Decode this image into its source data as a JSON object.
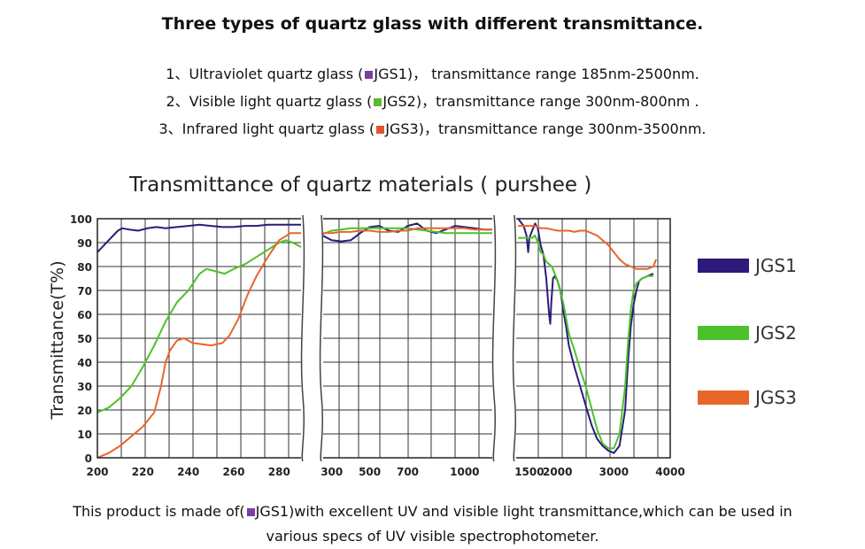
{
  "heading": "Three types of quartz glass with different transmittance.",
  "types": [
    {
      "prefix": "1、Ultraviolet quartz glass (",
      "code": "JGS1",
      "suffix": ")， transmittance range 185nm-2500nm.",
      "color": "#7a3fa0"
    },
    {
      "prefix": "2、Visible light quartz glass (",
      "code": "JGS2",
      "suffix": ")，transmittance range 300nm-800nm .",
      "color": "#5dbb2d"
    },
    {
      "prefix": "3、Infrared light quartz glass (",
      "code": "JGS3",
      "suffix": ")，transmittance range 300nm-3500nm.",
      "color": "#e2542b"
    }
  ],
  "footer": {
    "line1": "This product is made of(",
    "code": "JGS1",
    "line2": ")with excellent UV and visible light transmittance,which can be used in",
    "line3": "various specs of UV visible spectrophotometer."
  },
  "chart_data": {
    "type": "line",
    "title": "Transmittance of quartz materials ( purshee )",
    "xlabel": "",
    "ylabel": "Transmittance(T%)",
    "ylim": [
      0,
      100
    ],
    "yticks": [
      0,
      10,
      20,
      30,
      40,
      50,
      60,
      70,
      80,
      90,
      100
    ],
    "grid": true,
    "legend_position": "right",
    "panels": [
      {
        "xlim": [
          200,
          290
        ],
        "xticks": [
          200,
          220,
          240,
          260,
          280
        ]
      },
      {
        "xlim": [
          250,
          1150
        ],
        "xticks": [
          300,
          500,
          700,
          1000
        ],
        "xtick_positions": [
          300,
          500,
          700,
          1000
        ]
      },
      {
        "xlim": [
          1250,
          4000
        ],
        "xticks": [
          1500,
          2000,
          3000,
          4000
        ],
        "xtick_positions": [
          1500,
          2000,
          3000,
          4000
        ]
      }
    ],
    "series": [
      {
        "name": "JGS1",
        "color": "#2d1a7a",
        "panels": [
          [
            [
              200,
              86
            ],
            [
              203,
              89
            ],
            [
              206,
              92
            ],
            [
              209,
              95
            ],
            [
              211,
              96
            ],
            [
              214,
              95.5
            ],
            [
              218,
              95
            ],
            [
              222,
              96
            ],
            [
              226,
              96.5
            ],
            [
              230,
              96
            ],
            [
              235,
              96.5
            ],
            [
              240,
              97
            ],
            [
              245,
              97.5
            ],
            [
              250,
              97
            ],
            [
              255,
              96.5
            ],
            [
              260,
              96.5
            ],
            [
              265,
              97
            ],
            [
              270,
              97
            ],
            [
              275,
              97.5
            ],
            [
              280,
              97.5
            ],
            [
              285,
              97.5
            ],
            [
              290,
              97.5
            ]
          ],
          [
            [
              250,
              93
            ],
            [
              300,
              91
            ],
            [
              350,
              90.5
            ],
            [
              400,
              91
            ],
            [
              450,
              94
            ],
            [
              500,
              96.5
            ],
            [
              550,
              97
            ],
            [
              600,
              95
            ],
            [
              650,
              94.5
            ],
            [
              700,
              97
            ],
            [
              750,
              98
            ],
            [
              800,
              95
            ],
            [
              850,
              94
            ],
            [
              900,
              95.5
            ],
            [
              950,
              97
            ],
            [
              1000,
              96.5
            ],
            [
              1050,
              96
            ],
            [
              1100,
              95.5
            ],
            [
              1150,
              95.5
            ]
          ],
          [
            [
              1300,
              100
            ],
            [
              1400,
              97
            ],
            [
              1450,
              93
            ],
            [
              1480,
              86
            ],
            [
              1500,
              92
            ],
            [
              1550,
              95
            ],
            [
              1600,
              98
            ],
            [
              1650,
              96
            ],
            [
              1700,
              89
            ],
            [
              1750,
              85
            ],
            [
              1800,
              75
            ],
            [
              1850,
              60
            ],
            [
              1870,
              56
            ],
            [
              1890,
              65
            ],
            [
              1920,
              75
            ],
            [
              1950,
              76
            ],
            [
              2000,
              74
            ],
            [
              2050,
              70
            ],
            [
              2100,
              62
            ],
            [
              2150,
              55
            ],
            [
              2200,
              47
            ],
            [
              2300,
              38
            ],
            [
              2400,
              30
            ],
            [
              2500,
              22
            ],
            [
              2600,
              14
            ],
            [
              2700,
              8
            ],
            [
              2800,
              5
            ],
            [
              2900,
              3
            ],
            [
              3000,
              2
            ],
            [
              3100,
              5
            ],
            [
              3200,
              20
            ],
            [
              3250,
              40
            ],
            [
              3300,
              55
            ],
            [
              3350,
              64
            ],
            [
              3400,
              70
            ],
            [
              3450,
              74
            ],
            [
              3500,
              75
            ],
            [
              3600,
              76
            ],
            [
              3700,
              77
            ]
          ]
        ]
      },
      {
        "name": "JGS2",
        "color": "#4cc22a",
        "panels": [
          [
            [
              200,
              19
            ],
            [
              205,
              21
            ],
            [
              210,
              25
            ],
            [
              215,
              30
            ],
            [
              220,
              38
            ],
            [
              225,
              47
            ],
            [
              230,
              57
            ],
            [
              235,
              65
            ],
            [
              240,
              70
            ],
            [
              245,
              77
            ],
            [
              248,
              79
            ],
            [
              252,
              78
            ],
            [
              256,
              77
            ],
            [
              260,
              79
            ],
            [
              265,
              81
            ],
            [
              270,
              84
            ],
            [
              275,
              87
            ],
            [
              280,
              90
            ],
            [
              283,
              91
            ],
            [
              286,
              90
            ],
            [
              288,
              89
            ],
            [
              290,
              88
            ]
          ],
          [
            [
              250,
              93.5
            ],
            [
              300,
              95
            ],
            [
              350,
              95.5
            ],
            [
              400,
              96
            ],
            [
              450,
              96
            ],
            [
              500,
              96
            ],
            [
              550,
              96
            ],
            [
              600,
              96
            ],
            [
              650,
              96
            ],
            [
              700,
              96
            ],
            [
              750,
              95.5
            ],
            [
              800,
              95
            ],
            [
              850,
              94.5
            ],
            [
              900,
              94
            ],
            [
              950,
              94
            ],
            [
              1000,
              94
            ],
            [
              1050,
              94
            ],
            [
              1100,
              94
            ],
            [
              1150,
              94
            ]
          ],
          [
            [
              1300,
              92
            ],
            [
              1400,
              92
            ],
            [
              1500,
              92
            ],
            [
              1550,
              92
            ],
            [
              1600,
              93
            ],
            [
              1650,
              90
            ],
            [
              1700,
              86
            ],
            [
              1750,
              85
            ],
            [
              1800,
              82
            ],
            [
              1900,
              80
            ],
            [
              2000,
              74
            ],
            [
              2100,
              65
            ],
            [
              2200,
              52
            ],
            [
              2300,
              45
            ],
            [
              2400,
              37
            ],
            [
              2500,
              30
            ],
            [
              2600,
              21
            ],
            [
              2700,
              12
            ],
            [
              2800,
              6
            ],
            [
              2900,
              4
            ],
            [
              3000,
              4
            ],
            [
              3100,
              10
            ],
            [
              3200,
              30
            ],
            [
              3250,
              48
            ],
            [
              3300,
              62
            ],
            [
              3350,
              70
            ],
            [
              3400,
              73
            ],
            [
              3450,
              74
            ],
            [
              3500,
              75
            ],
            [
              3600,
              76
            ],
            [
              3700,
              76
            ]
          ]
        ]
      },
      {
        "name": "JGS3",
        "color": "#e8662a",
        "panels": [
          [
            [
              200,
              0
            ],
            [
              205,
              2
            ],
            [
              210,
              5
            ],
            [
              215,
              9
            ],
            [
              220,
              13
            ],
            [
              225,
              19
            ],
            [
              228,
              30
            ],
            [
              230,
              40
            ],
            [
              232,
              45
            ],
            [
              235,
              49
            ],
            [
              238,
              50
            ],
            [
              242,
              48
            ],
            [
              246,
              47.5
            ],
            [
              250,
              47
            ],
            [
              255,
              48
            ],
            [
              258,
              51
            ],
            [
              262,
              58
            ],
            [
              266,
              68
            ],
            [
              270,
              76
            ],
            [
              275,
              84
            ],
            [
              280,
              91
            ],
            [
              285,
              94
            ],
            [
              290,
              94
            ]
          ],
          [
            [
              250,
              94
            ],
            [
              300,
              94
            ],
            [
              350,
              94.5
            ],
            [
              400,
              94.5
            ],
            [
              450,
              95
            ],
            [
              500,
              95
            ],
            [
              550,
              94.5
            ],
            [
              600,
              94.5
            ],
            [
              650,
              95
            ],
            [
              700,
              95
            ],
            [
              750,
              96
            ],
            [
              800,
              96
            ],
            [
              850,
              96
            ],
            [
              900,
              96
            ],
            [
              950,
              96
            ],
            [
              1000,
              96
            ],
            [
              1050,
              95.5
            ],
            [
              1100,
              95.5
            ],
            [
              1150,
              95.5
            ]
          ],
          [
            [
              1300,
              97
            ],
            [
              1400,
              97
            ],
            [
              1500,
              97
            ],
            [
              1600,
              97
            ],
            [
              1700,
              96
            ],
            [
              1800,
              96
            ],
            [
              1900,
              95.5
            ],
            [
              2000,
              95
            ],
            [
              2100,
              95
            ],
            [
              2200,
              95
            ],
            [
              2300,
              94.5
            ],
            [
              2400,
              95
            ],
            [
              2500,
              95
            ],
            [
              2600,
              94
            ],
            [
              2700,
              93
            ],
            [
              2800,
              91
            ],
            [
              2900,
              89
            ],
            [
              3000,
              86
            ],
            [
              3100,
              83
            ],
            [
              3200,
              81
            ],
            [
              3300,
              80
            ],
            [
              3400,
              79
            ],
            [
              3500,
              79
            ],
            [
              3600,
              79
            ],
            [
              3700,
              80
            ],
            [
              3750,
              83
            ]
          ]
        ]
      }
    ]
  }
}
